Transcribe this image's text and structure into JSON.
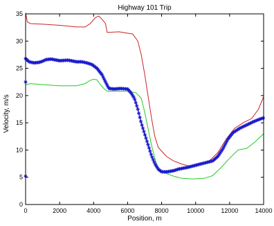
{
  "chart_data": {
    "type": "line",
    "title": "Highway 101 Trip",
    "xlabel": "Position, m",
    "ylabel": "Velocity, m/s",
    "xlim": [
      0,
      14000
    ],
    "ylim": [
      0,
      35
    ],
    "xticks": [
      0,
      2000,
      4000,
      6000,
      8000,
      10000,
      12000,
      14000
    ],
    "yticks": [
      0,
      5,
      10,
      15,
      20,
      25,
      30,
      35
    ],
    "grid": false,
    "legend": "none",
    "series": [
      {
        "color": "#cc2222",
        "marker": "none",
        "x": [
          0,
          100,
          300,
          1000,
          2000,
          3000,
          3500,
          3800,
          4100,
          4300,
          4500,
          4700,
          4800,
          5500,
          6300,
          6600,
          6800,
          7000,
          7200,
          7400,
          7600,
          7800,
          8000,
          8300,
          8700,
          9200,
          9700,
          10200,
          10800,
          11300,
          11800,
          12300,
          12800,
          13300,
          13700,
          14000
        ],
        "y": [
          35.2,
          33.5,
          33.2,
          33.1,
          32.9,
          32.6,
          32.6,
          33.2,
          34.3,
          34.6,
          34.0,
          33.2,
          31.6,
          31.7,
          31.3,
          30.0,
          27.5,
          24.0,
          20.0,
          16.0,
          12.5,
          10.5,
          9.8,
          8.8,
          8.0,
          7.4,
          7.0,
          7.3,
          8.0,
          9.5,
          12.0,
          14.0,
          15.0,
          15.8,
          17.5,
          19.8
        ]
      },
      {
        "color": "#22cc22",
        "marker": "none",
        "x": [
          0,
          300,
          1000,
          2000,
          3000,
          3500,
          3800,
          4000,
          4200,
          4400,
          4600,
          4800,
          5200,
          6000,
          6500,
          6800,
          7000,
          7200,
          7400,
          7600,
          7800,
          8200,
          8700,
          9200,
          9800,
          10500,
          11000,
          11500,
          12000,
          12500,
          13000,
          13500,
          14000
        ],
        "y": [
          22.0,
          22.2,
          22.0,
          21.8,
          21.8,
          22.2,
          22.8,
          23.0,
          22.9,
          22.0,
          21.3,
          20.8,
          20.8,
          20.8,
          20.5,
          19.5,
          17.0,
          14.0,
          11.0,
          8.5,
          6.5,
          5.8,
          5.2,
          4.8,
          4.7,
          4.8,
          5.3,
          6.8,
          8.5,
          10.0,
          10.3,
          11.5,
          13.0
        ]
      },
      {
        "color": "#1a1acc",
        "marker": "*",
        "x": [
          0,
          200,
          500,
          800,
          1000,
          1200,
          1500,
          2000,
          2500,
          3000,
          3300,
          3600,
          3900,
          4200,
          4500,
          4700,
          4900,
          5200,
          5600,
          6000,
          6200,
          6400,
          6600,
          6800,
          7000,
          7200,
          7400,
          7600,
          7800,
          8000,
          8300,
          8700,
          9000,
          9500,
          10000,
          10500,
          11000,
          11300,
          11600,
          11900,
          12200,
          12600,
          13000,
          13400,
          13800,
          14000
        ],
        "y": [
          26.8,
          26.2,
          26.0,
          26.1,
          26.3,
          26.6,
          26.7,
          26.4,
          26.5,
          26.2,
          26.2,
          26.0,
          25.7,
          25.0,
          23.8,
          22.5,
          21.3,
          21.2,
          21.3,
          21.2,
          20.5,
          19.5,
          17.5,
          15.0,
          13.0,
          11.0,
          9.0,
          7.5,
          6.5,
          6.0,
          6.0,
          6.2,
          6.5,
          6.8,
          7.2,
          7.6,
          8.0,
          8.8,
          10.2,
          12.0,
          13.2,
          14.0,
          14.6,
          15.2,
          15.7,
          15.9
        ]
      }
    ],
    "outliers": [
      {
        "x": 0,
        "y": 22.5,
        "color": "#1a1acc",
        "marker": "*"
      },
      {
        "x": 0,
        "y": 5.2,
        "color": "#1a1acc",
        "marker": "*"
      }
    ]
  }
}
